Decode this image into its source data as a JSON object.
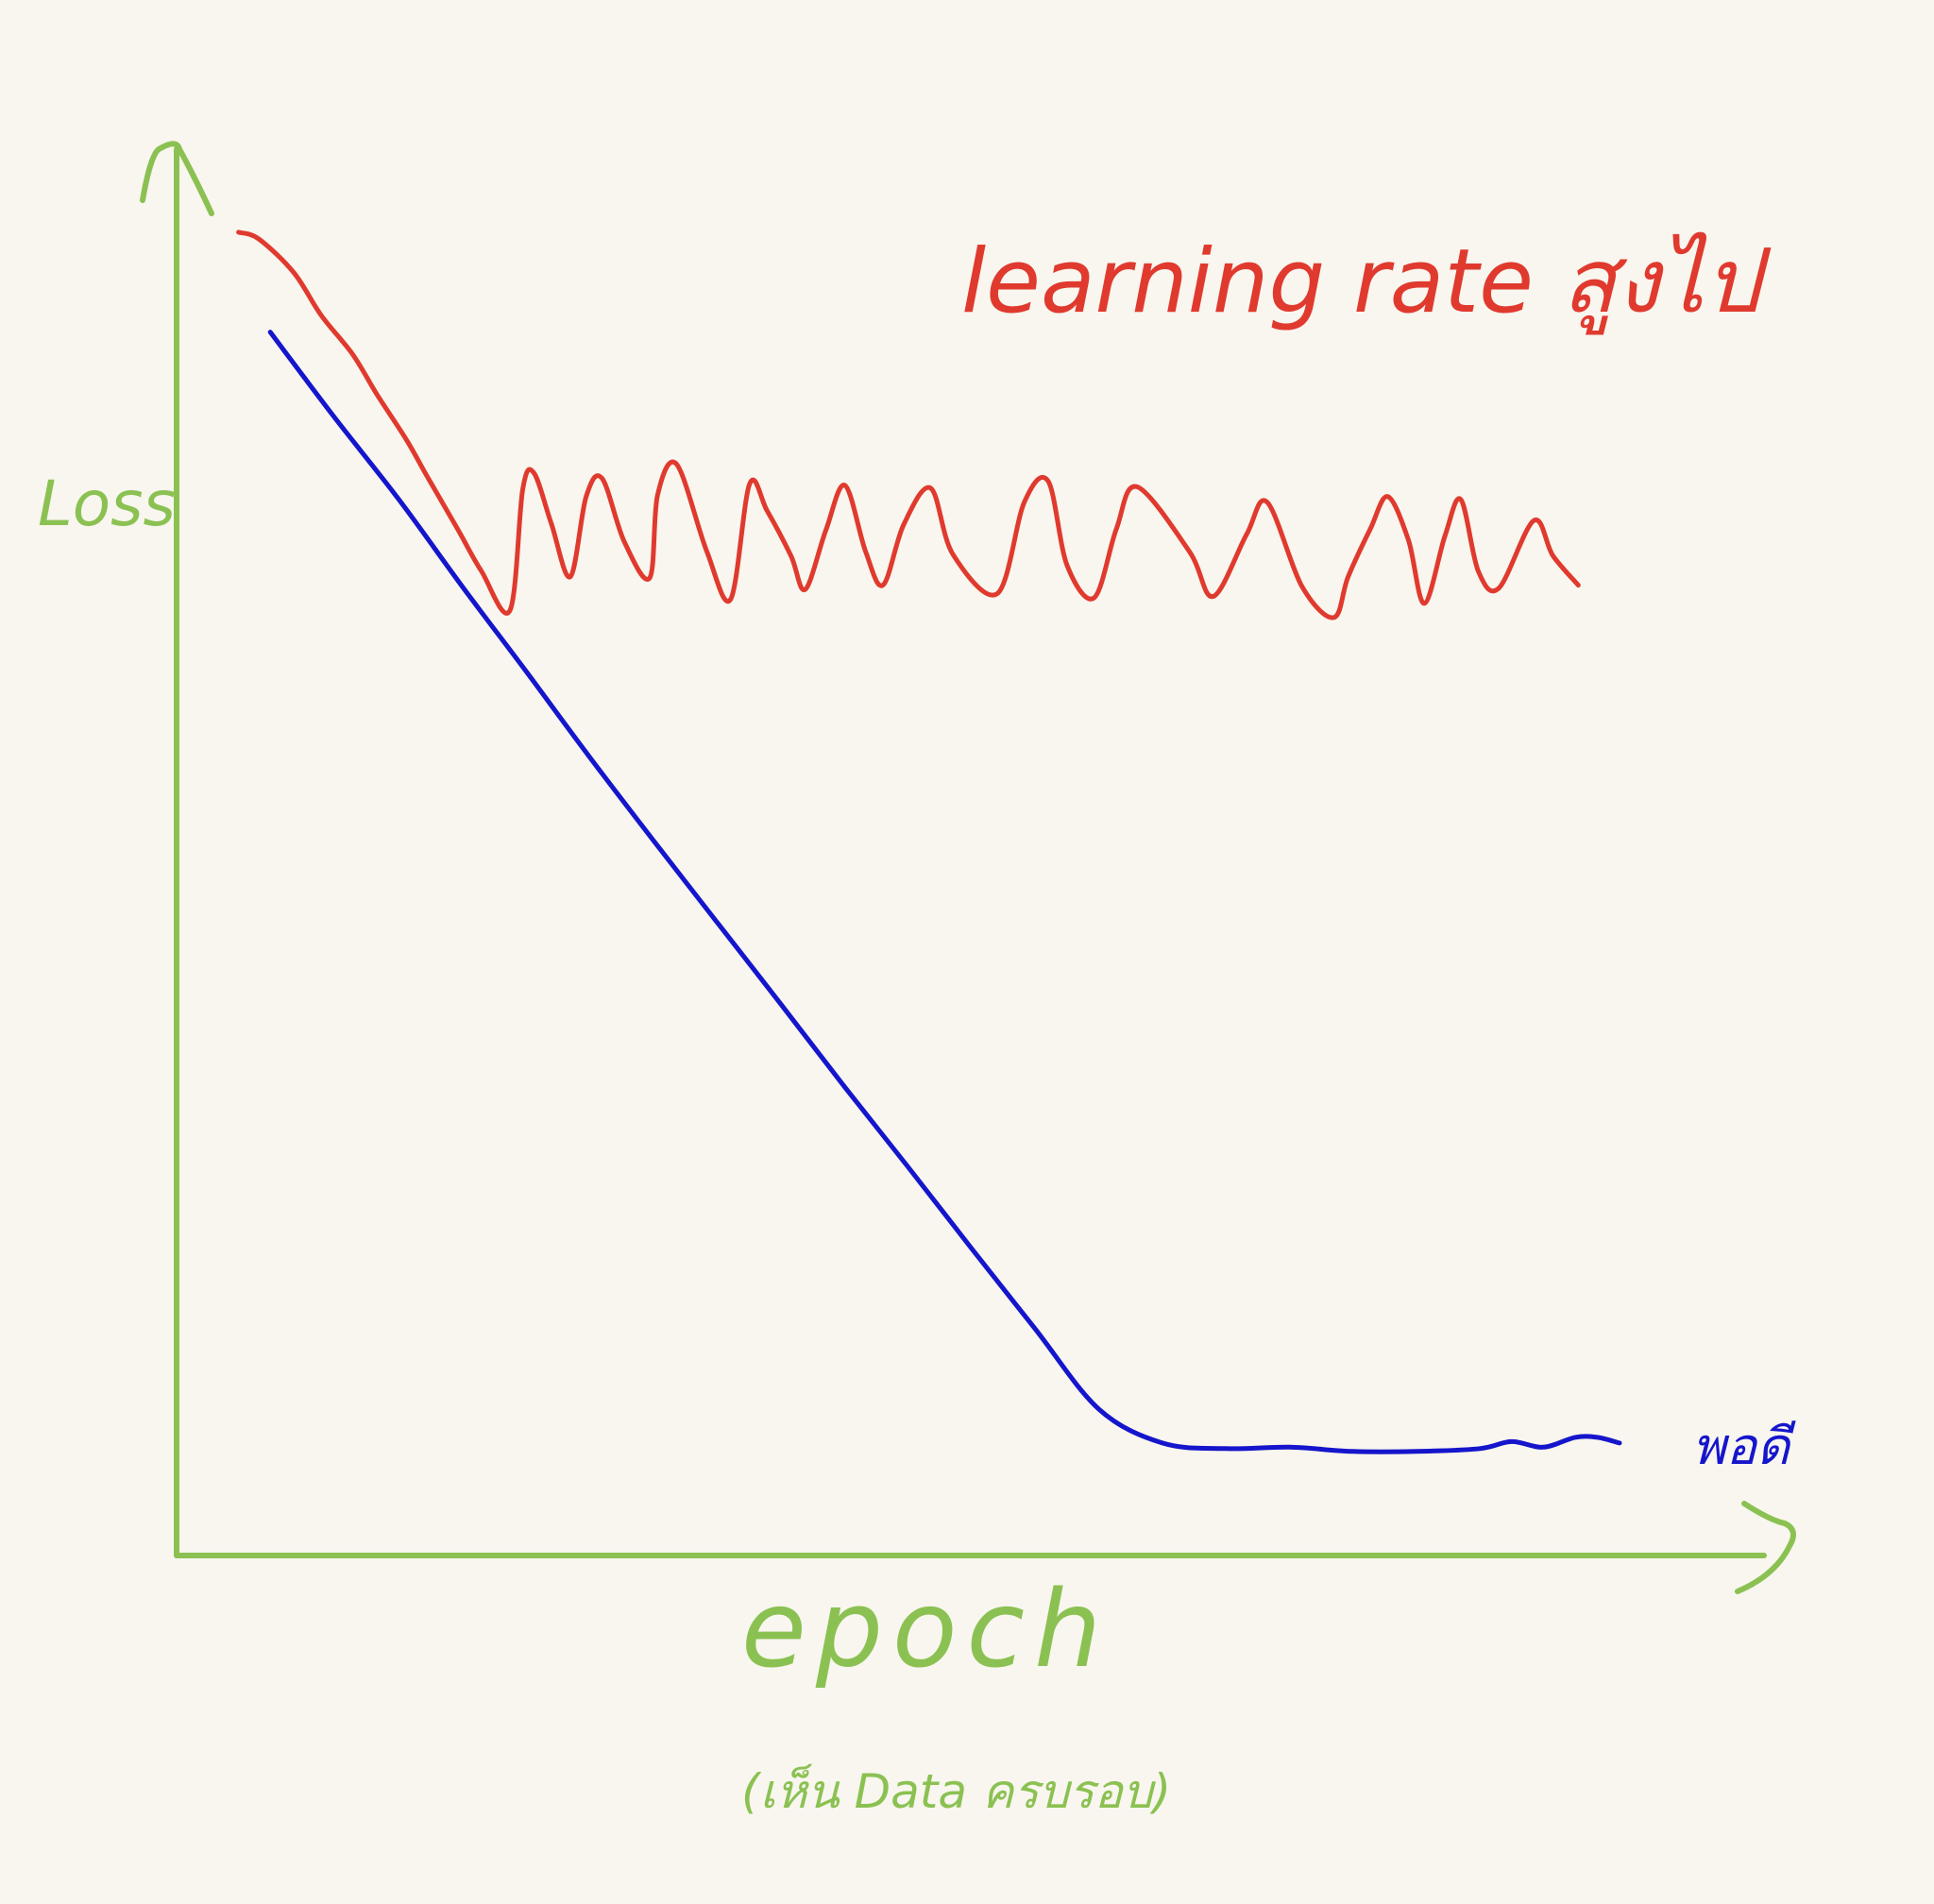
{
  "colors": {
    "background": "#f8f6ee",
    "axis": "#8bc152",
    "high_lr": "#e03a2f",
    "good_lr": "#1515cc"
  },
  "chart_data": {
    "type": "line",
    "xlabel": "epoch",
    "xlabel_note": "(เห็น Data ครบรอบ)",
    "ylabel": "Loss",
    "xlim": [
      0,
      100
    ],
    "ylim": [
      0,
      100
    ],
    "grid": false,
    "legend": "none",
    "series": [
      {
        "name": "learning rate สูงไป",
        "label_position": "top-right",
        "x": [
          3.9,
          5.2,
          7.4,
          9.1,
          11.1,
          12.6,
          14.5,
          15.8,
          17.7,
          19.2,
          21.0,
          21.8,
          22.5,
          23.6,
          24.8,
          25.8,
          26.8,
          28.2,
          29.8,
          30.3,
          31.5,
          33.4,
          34.9,
          36.1,
          37.2,
          38.7,
          39.6,
          40.9,
          42.1,
          43.4,
          44.5,
          45.8,
          47.5,
          48.9,
          51.7,
          53.4,
          54.9,
          56.1,
          57.8,
          59.2,
          60.5,
          63.8,
          65.3,
          67.4,
          68.7,
          70.9,
          72.9,
          73.8,
          75.2,
          76.3,
          77.6,
          78.6,
          79.9,
          80.9,
          82.0,
          83.3,
          85.5,
          86.7,
          88.3
        ],
        "y": [
          94.1,
          93.6,
          91.2,
          88.2,
          85.4,
          82.6,
          79.3,
          76.7,
          73.0,
          70.0,
          67.2,
          75.8,
          77.0,
          73.4,
          69.6,
          75.3,
          76.6,
          72.1,
          69.5,
          75.4,
          77.6,
          71.4,
          68.0,
          76.2,
          74.3,
          71.1,
          68.7,
          72.9,
          76.1,
          71.4,
          69.0,
          73.3,
          75.9,
          71.2,
          68.4,
          74.9,
          76.4,
          70.4,
          68.1,
          73.0,
          76.0,
          71.4,
          68.2,
          72.6,
          74.9,
          68.9,
          66.7,
          69.6,
          73.0,
          75.3,
          72.2,
          67.7,
          72.5,
          75.1,
          70.0,
          68.8,
          73.6,
          71.1,
          69.0
        ]
      },
      {
        "name": "พอดี",
        "label_position": "bottom-right",
        "x": [
          5.9,
          9.9,
          14.0,
          18.0,
          22.0,
          26.0,
          30.0,
          34.0,
          38.0,
          42.1,
          46.1,
          50.1,
          54.1,
          58.1,
          62.1,
          66.1,
          70.1,
          74.1,
          78.1,
          82.1,
          84.1,
          86.1,
          88.1,
          89.5,
          90.9
        ],
        "y": [
          87.0,
          81.0,
          75.1,
          68.9,
          62.9,
          56.8,
          50.9,
          45.1,
          39.3,
          33.3,
          27.6,
          21.8,
          16.1,
          10.4,
          8.0,
          7.6,
          7.7,
          7.4,
          7.4,
          7.6,
          8.1,
          7.7,
          8.4,
          8.4,
          8.0
        ]
      }
    ]
  }
}
